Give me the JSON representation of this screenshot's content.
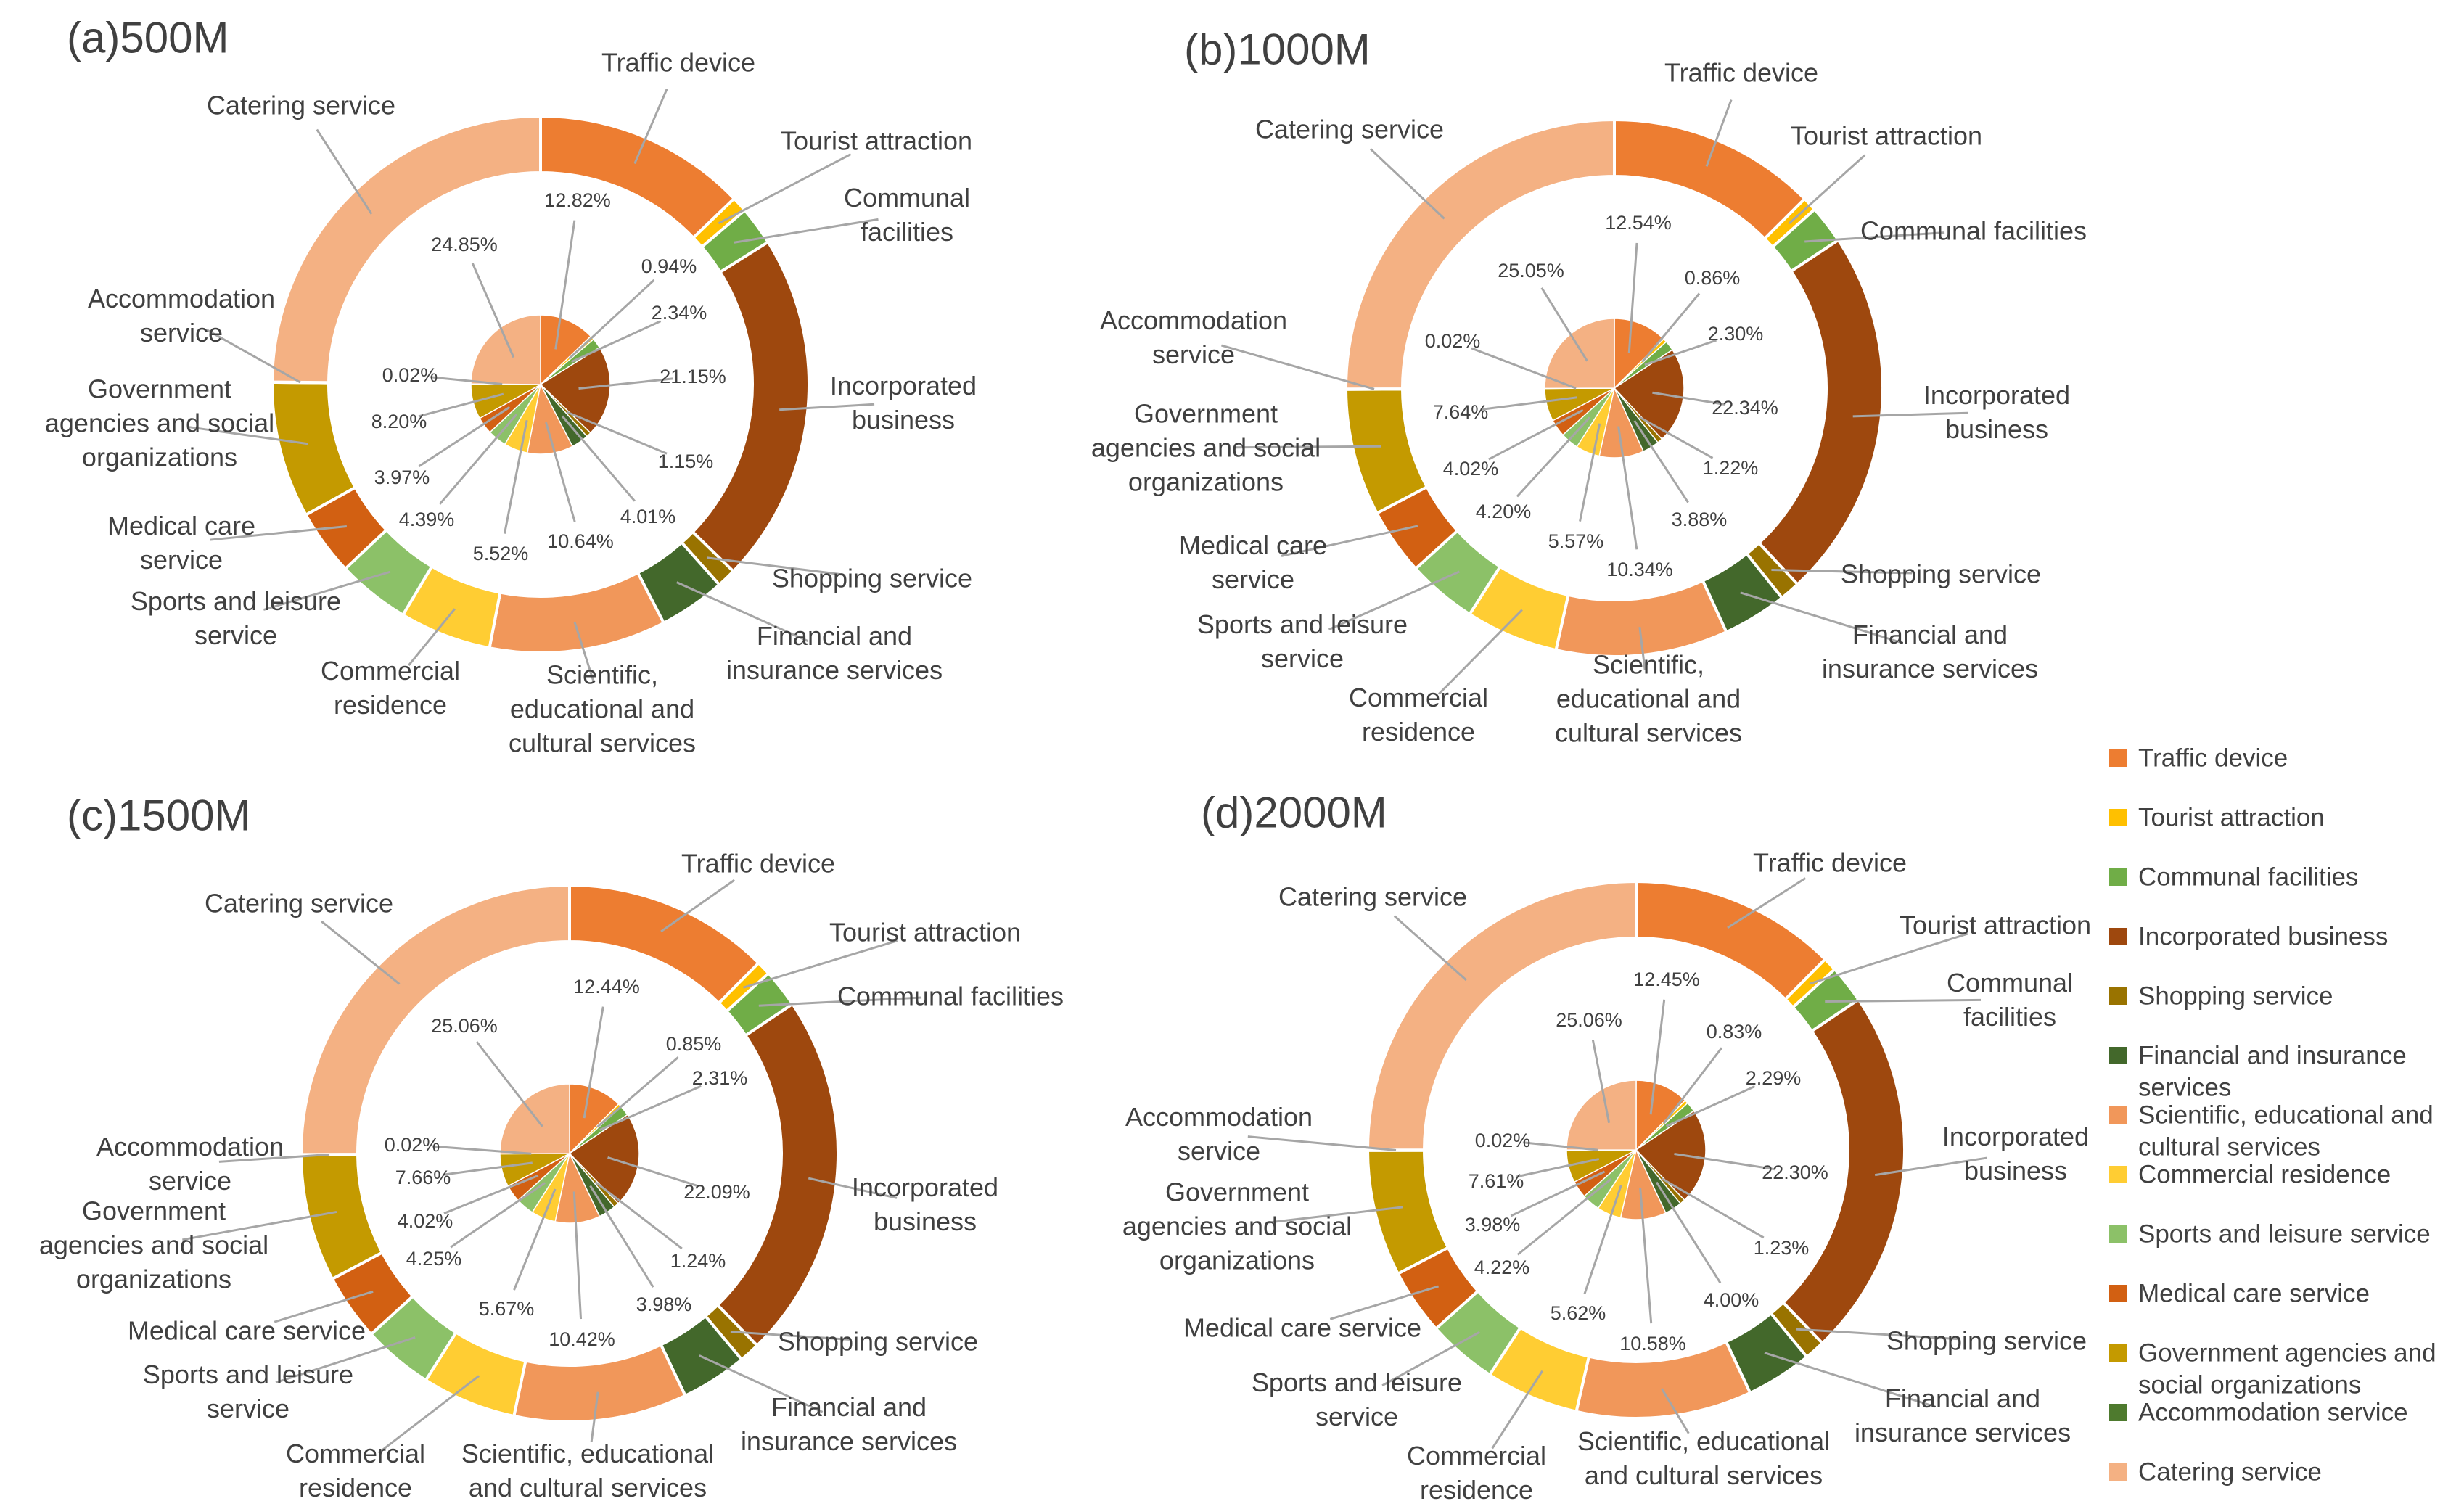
{
  "colors": {
    "Traffic device": "#ED7D31",
    "Tourist attraction": "#FFC000",
    "Communal facilities": "#70AD47",
    "Incorporated business": "#9E480E",
    "Shopping service": "#997300",
    "Financial and insurance services": "#43682B",
    "Scientific, educational and cultural services": "#F1975A",
    "Commercial residence": "#FFCD33",
    "Sports and leisure service": "#8CC168",
    "Medical care service": "#D26012",
    "Government agencies and social organizations": "#C49A00",
    "Accommodation service": "#4E7A2E",
    "Catering service": "#F4B183"
  },
  "legend": {
    "items": [
      "Traffic device",
      "Tourist attraction",
      "Communal facilities",
      "Incorporated business",
      "Shopping service",
      "Financial and insurance services",
      "Scientific, educational and cultural services",
      "Commercial residence",
      "Sports and leisure service",
      "Medical care service",
      "Government agencies and social organizations",
      "Accommodation service",
      "Catering service"
    ],
    "display_lines": [
      [
        "Traffic device"
      ],
      [
        "Tourist attraction"
      ],
      [
        "Communal facilities"
      ],
      [
        "Incorporated business"
      ],
      [
        "Shopping service"
      ],
      [
        "Financial and insurance",
        "services"
      ],
      [
        "Scientific, educational and",
        "cultural services"
      ],
      [
        "Commercial residence"
      ],
      [
        "Sports and leisure service"
      ],
      [
        "Medical care service"
      ],
      [
        "Government agencies and",
        "social organizations"
      ],
      [
        "Accommodation service"
      ],
      [
        "Catering service"
      ]
    ]
  },
  "chart_data": [
    {
      "type": "pie",
      "variant": "doughnut",
      "title": "(a)500M",
      "categories": [
        "Traffic device",
        "Tourist attraction",
        "Communal facilities",
        "Incorporated business",
        "Shopping service",
        "Financial and insurance services",
        "Scientific, educational and cultural services",
        "Commercial residence",
        "Sports and leisure service",
        "Medical care service",
        "Government agencies and social organizations",
        "Accommodation service",
        "Catering service"
      ],
      "values": [
        12.82,
        0.94,
        2.34,
        21.15,
        1.15,
        4.01,
        10.64,
        5.52,
        4.39,
        3.97,
        8.2,
        0.02,
        24.85
      ],
      "value_labels": [
        "12.82%",
        "0.94%",
        "2.34%",
        "21.15%",
        "1.15%",
        "4.01%",
        "10.64%",
        "5.52%",
        "4.39%",
        "3.97%",
        "8.20%",
        "0.02%",
        "24.85%"
      ],
      "category_label_lines": [
        [
          "Traffic device"
        ],
        [
          "Tourist attraction"
        ],
        [
          "Communal",
          "facilities"
        ],
        [
          "Incorporated",
          "business"
        ],
        [
          "Shopping service"
        ],
        [
          "Financial and",
          "insurance services"
        ],
        [
          "Scientific,",
          "educational and",
          "cultural services"
        ],
        [
          "Commercial",
          "residence"
        ],
        [
          "Sports and leisure",
          "service"
        ],
        [
          "Medical care",
          "service"
        ],
        [
          "Government",
          "agencies and social",
          "organizations"
        ],
        [
          "Accommodation",
          "service"
        ],
        [
          "Catering service"
        ]
      ]
    },
    {
      "type": "pie",
      "variant": "doughnut",
      "title": "(b)1000M",
      "categories": [
        "Traffic device",
        "Tourist attraction",
        "Communal facilities",
        "Incorporated business",
        "Shopping service",
        "Financial and insurance services",
        "Scientific, educational and cultural services",
        "Commercial residence",
        "Sports and leisure service",
        "Medical care service",
        "Government agencies and social organizations",
        "Accommodation service",
        "Catering service"
      ],
      "values": [
        12.54,
        0.86,
        2.3,
        22.34,
        1.22,
        3.88,
        10.34,
        5.57,
        4.2,
        4.02,
        7.64,
        0.02,
        25.05
      ],
      "value_labels": [
        "12.54%",
        "0.86%",
        "2.30%",
        "22.34%",
        "1.22%",
        "3.88%",
        "10.34%",
        "5.57%",
        "4.20%",
        "4.02%",
        "7.64%",
        "0.02%",
        "25.05%"
      ],
      "category_label_lines": [
        [
          "Traffic device"
        ],
        [
          "Tourist attraction"
        ],
        [
          "Communal facilities"
        ],
        [
          "Incorporated",
          "business"
        ],
        [
          "Shopping service"
        ],
        [
          "Financial and",
          "insurance services"
        ],
        [
          "Scientific,",
          "educational and",
          "cultural services"
        ],
        [
          "Commercial",
          "residence"
        ],
        [
          "Sports and leisure",
          "service"
        ],
        [
          "Medical care",
          "service"
        ],
        [
          "Government",
          "agencies and social",
          "organizations"
        ],
        [
          "Accommodation",
          "service"
        ],
        [
          "Catering service"
        ]
      ]
    },
    {
      "type": "pie",
      "variant": "doughnut",
      "title": "(c)1500M",
      "categories": [
        "Traffic device",
        "Tourist attraction",
        "Communal facilities",
        "Incorporated business",
        "Shopping service",
        "Financial and insurance services",
        "Scientific, educational and cultural services",
        "Commercial residence",
        "Sports and leisure service",
        "Medical care service",
        "Government agencies and social organizations",
        "Accommodation service",
        "Catering service"
      ],
      "values": [
        12.44,
        0.85,
        2.31,
        22.09,
        1.24,
        3.98,
        10.42,
        5.67,
        4.25,
        4.02,
        7.66,
        0.02,
        25.06
      ],
      "value_labels": [
        "12.44%",
        "0.85%",
        "2.31%",
        "22.09%",
        "1.24%",
        "3.98%",
        "10.42%",
        "5.67%",
        "4.25%",
        "4.02%",
        "7.66%",
        "0.02%",
        "25.06%"
      ],
      "category_label_lines": [
        [
          "Traffic device"
        ],
        [
          "Tourist attraction"
        ],
        [
          "Communal facilities"
        ],
        [
          "Incorporated",
          "business"
        ],
        [
          "Shopping service"
        ],
        [
          "Financial and",
          "insurance services"
        ],
        [
          "Scientific, educational",
          "and cultural services"
        ],
        [
          "Commercial",
          "residence"
        ],
        [
          "Sports and leisure",
          "service"
        ],
        [
          "Medical care service"
        ],
        [
          "Government",
          "agencies and social",
          "organizations"
        ],
        [
          "Accommodation",
          "service"
        ],
        [
          "Catering service"
        ]
      ]
    },
    {
      "type": "pie",
      "variant": "doughnut",
      "title": "(d)2000M",
      "categories": [
        "Traffic device",
        "Tourist attraction",
        "Communal facilities",
        "Incorporated business",
        "Shopping service",
        "Financial and insurance services",
        "Scientific, educational and cultural services",
        "Commercial residence",
        "Sports and leisure service",
        "Medical care service",
        "Government agencies and social organizations",
        "Accommodation service",
        "Catering service"
      ],
      "values": [
        12.45,
        0.83,
        2.29,
        22.3,
        1.23,
        4.0,
        10.58,
        5.62,
        4.22,
        3.98,
        7.61,
        0.02,
        25.06
      ],
      "value_labels": [
        "12.45%",
        "0.83%",
        "2.29%",
        "22.30%",
        "1.23%",
        "4.00%",
        "10.58%",
        "5.62%",
        "4.22%",
        "3.98%",
        "7.61%",
        "0.02%",
        "25.06%"
      ],
      "category_label_lines": [
        [
          "Traffic device"
        ],
        [
          "Tourist attraction"
        ],
        [
          "Communal",
          "facilities"
        ],
        [
          "Incorporated",
          "business"
        ],
        [
          "Shopping service"
        ],
        [
          "Financial and",
          "insurance services"
        ],
        [
          "Scientific, educational",
          "and cultural services"
        ],
        [
          "Commercial",
          "residence"
        ],
        [
          "Sports and leisure",
          "service"
        ],
        [
          "Medical care service"
        ],
        [
          "Government",
          "agencies and social",
          "organizations"
        ],
        [
          "Accommodation",
          "service"
        ],
        [
          "Catering service"
        ]
      ]
    }
  ]
}
